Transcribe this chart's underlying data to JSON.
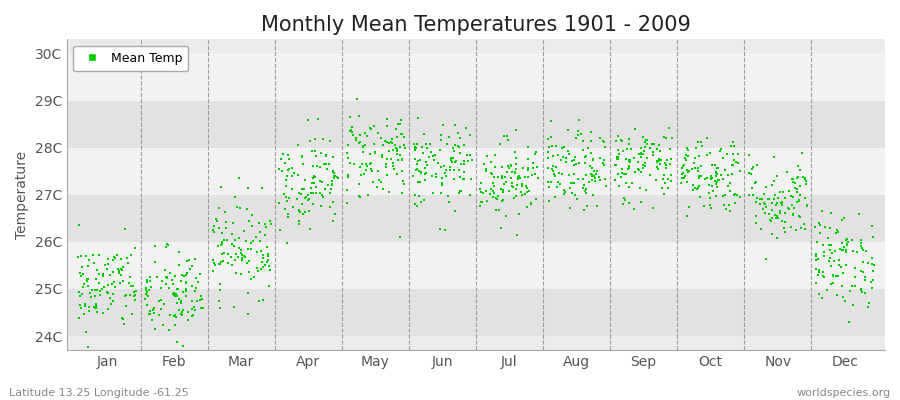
{
  "title": "Monthly Mean Temperatures 1901 - 2009",
  "ylabel": "Temperature",
  "ytick_labels": [
    "24C",
    "25C",
    "26C",
    "27C",
    "28C",
    "29C",
    "30C"
  ],
  "ytick_values": [
    24,
    25,
    26,
    27,
    28,
    29,
    30
  ],
  "ylim": [
    23.7,
    30.3
  ],
  "months": [
    "Jan",
    "Feb",
    "Mar",
    "Apr",
    "May",
    "Jun",
    "Jul",
    "Aug",
    "Sep",
    "Oct",
    "Nov",
    "Dec"
  ],
  "month_centers": [
    1.0,
    2.0,
    3.0,
    4.0,
    5.0,
    6.0,
    7.0,
    8.0,
    9.0,
    10.0,
    11.0,
    12.0
  ],
  "xlim": [
    0.4,
    12.6
  ],
  "dot_color": "#00cc00",
  "dot_size": 3,
  "background_color": "#ebebeb",
  "band_colors": [
    "#e2e2e2",
    "#f2f2f2"
  ],
  "title_fontsize": 15,
  "axis_label_fontsize": 10,
  "tick_fontsize": 10,
  "legend_label": "Mean Temp",
  "footer_left": "Latitude 13.25 Longitude -61.25",
  "footer_right": "worldspecies.org",
  "num_years": 109,
  "seed": 42,
  "monthly_means": [
    25.05,
    24.85,
    25.9,
    27.3,
    27.85,
    27.55,
    27.35,
    27.5,
    27.65,
    27.45,
    26.9,
    25.6
  ],
  "monthly_stds": [
    0.48,
    0.5,
    0.52,
    0.5,
    0.5,
    0.45,
    0.42,
    0.42,
    0.42,
    0.42,
    0.45,
    0.5
  ]
}
